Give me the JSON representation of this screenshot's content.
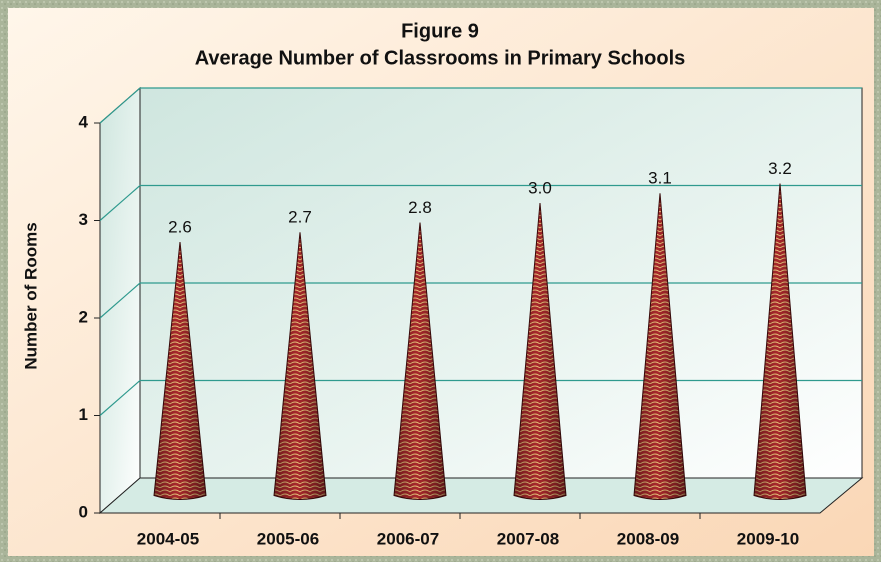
{
  "chart_data": {
    "type": "cone",
    "title": "Figure 9",
    "subtitle": "Average Number of Classrooms in Primary Schools",
    "y_label": "Number of Rooms",
    "categories": [
      "2004-05",
      "2005-06",
      "2006-07",
      "2007-08",
      "2008-09",
      "2009-10"
    ],
    "values": [
      2.6,
      2.7,
      2.8,
      3.0,
      3.1,
      3.2
    ],
    "value_labels": [
      "2.6",
      "2.7",
      "2.8",
      "3.0",
      "3.1",
      "3.2"
    ],
    "color": "#a8282c",
    "ylim": [
      0,
      4
    ],
    "yticks": [
      0,
      1,
      2,
      3,
      4
    ],
    "grid": true
  }
}
